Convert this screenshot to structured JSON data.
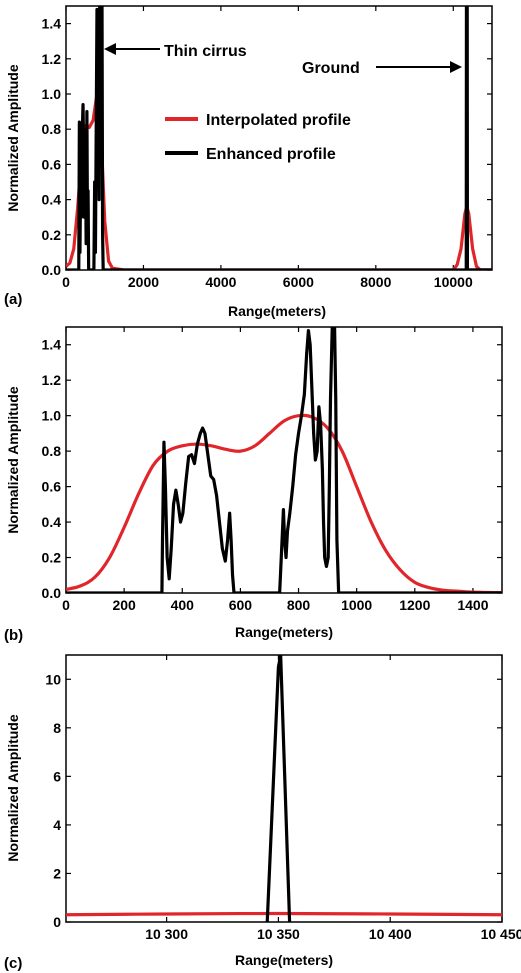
{
  "chart_data": [
    {
      "panel_label": "(a)",
      "type": "line",
      "xlabel": "Range(meters)",
      "ylabel": "Normalized Amplitude",
      "xlim": [
        0,
        11000
      ],
      "ylim": [
        0,
        1.5
      ],
      "xticks": [
        0,
        2000,
        4000,
        6000,
        8000,
        10000
      ],
      "xtick_labels": [
        "0",
        "2000",
        "4000",
        "6000",
        "8000",
        "10000"
      ],
      "yticks": [
        0,
        0.2,
        0.4,
        0.6,
        0.8,
        1.0,
        1.2,
        1.4
      ],
      "ytick_labels": [
        "0.0",
        "0.2",
        "0.4",
        "0.6",
        "0.8",
        "1.0",
        "1.2",
        "1.4"
      ],
      "legend": {
        "placement": "center-left",
        "entries": [
          {
            "label": "Interpolated profile",
            "color": "#e0262b"
          },
          {
            "label": "Enhanced profile",
            "color": "#000000"
          }
        ]
      },
      "annotations": [
        {
          "text": "Thin cirrus",
          "x": 900,
          "y": 1.32
        },
        {
          "text": "Ground",
          "x": 10350,
          "y": 1.23
        }
      ],
      "series": [
        {
          "color": "#e0262b",
          "x": [
            0,
            100,
            200,
            300,
            400,
            500,
            600,
            700,
            800,
            900,
            1000,
            1100,
            1200,
            1500,
            3000,
            6000,
            9000,
            9800,
            10000,
            10100,
            10200,
            10250,
            10300,
            10350,
            10400,
            10450,
            10500,
            10600,
            10700,
            11000
          ],
          "y": [
            0.02,
            0.04,
            0.12,
            0.35,
            0.65,
            0.82,
            0.81,
            0.85,
            1.0,
            0.8,
            0.28,
            0.05,
            0.01,
            0.0,
            0.0,
            0.0,
            0.0,
            0.0,
            0.0,
            0.03,
            0.12,
            0.22,
            0.32,
            0.36,
            0.32,
            0.22,
            0.12,
            0.02,
            0.0,
            0.0
          ]
        },
        {
          "color": "#000000",
          "x": [
            0,
            330,
            345,
            360,
            380,
            395,
            420,
            440,
            460,
            475,
            500,
            520,
            540,
            555,
            570,
            585,
            720,
            740,
            760,
            780,
            800,
            820,
            840,
            855,
            870,
            885,
            900,
            915,
            930,
            945,
            960,
            11000
          ],
          "y": [
            0,
            0,
            0.84,
            0.1,
            0.55,
            0.3,
            0.78,
            0.94,
            0.6,
            0.3,
            0.8,
            0.15,
            0.9,
            0.2,
            0.45,
            0,
            0,
            0.5,
            0.1,
            0.8,
            1.48,
            0.8,
            1.05,
            0.4,
            1.5,
            0.6,
            1.5,
            1.1,
            1.5,
            0.2,
            0,
            0
          ]
        },
        {
          "color": "#000000",
          "x": [
            10300,
            10335,
            10340,
            10345,
            10350,
            10355,
            10360,
            10365,
            11000
          ],
          "y": [
            0,
            0,
            1.5,
            1.5,
            1.5,
            1.5,
            1.5,
            0,
            0
          ]
        }
      ]
    },
    {
      "panel_label": "(b)",
      "type": "line",
      "xlabel": "Range(meters)",
      "ylabel": "Normalized Amplitude",
      "xlim": [
        0,
        1500
      ],
      "ylim": [
        0,
        1.5
      ],
      "xticks": [
        0,
        200,
        400,
        600,
        800,
        1000,
        1200,
        1400
      ],
      "xtick_labels": [
        "0",
        "200",
        "400",
        "600",
        "800",
        "1000",
        "1200",
        "1400"
      ],
      "yticks": [
        0,
        0.2,
        0.4,
        0.6,
        0.8,
        1.0,
        1.2,
        1.4
      ],
      "ytick_labels": [
        "0.0",
        "0.2",
        "0.4",
        "0.6",
        "0.8",
        "1.0",
        "1.2",
        "1.4"
      ],
      "series": [
        {
          "color": "#e0262b",
          "x": [
            0,
            50,
            100,
            150,
            200,
            250,
            300,
            350,
            400,
            450,
            500,
            550,
            600,
            650,
            700,
            750,
            800,
            850,
            900,
            950,
            1000,
            1050,
            1100,
            1150,
            1200,
            1250,
            1300,
            1350,
            1400,
            1450,
            1500
          ],
          "y": [
            0.02,
            0.04,
            0.09,
            0.2,
            0.37,
            0.56,
            0.72,
            0.8,
            0.83,
            0.84,
            0.83,
            0.81,
            0.8,
            0.83,
            0.9,
            0.97,
            1.0,
            0.99,
            0.93,
            0.8,
            0.6,
            0.4,
            0.24,
            0.13,
            0.06,
            0.03,
            0.015,
            0.01,
            0.005,
            0.003,
            0.002
          ],
          "smooth": true
        },
        {
          "color": "#000000",
          "x": [
            0,
            330,
            332,
            337,
            342,
            348,
            355,
            362,
            370,
            378,
            386,
            394,
            402,
            412,
            422,
            432,
            442,
            452,
            462,
            470,
            478,
            488,
            498,
            508,
            518,
            528,
            538,
            548,
            556,
            563,
            568,
            573,
            578,
            585,
            735,
            742,
            748,
            752,
            757,
            762,
            770,
            780,
            790,
            800,
            810,
            820,
            828,
            834,
            840,
            846,
            852,
            858,
            864,
            870,
            876,
            882,
            886,
            890,
            896,
            902,
            906,
            910,
            916,
            920,
            924,
            928,
            932,
            938,
            1500
          ],
          "y": [
            0,
            0,
            0.3,
            0.85,
            0.6,
            0.2,
            0.08,
            0.25,
            0.5,
            0.58,
            0.5,
            0.4,
            0.45,
            0.62,
            0.77,
            0.78,
            0.73,
            0.84,
            0.9,
            0.93,
            0.9,
            0.78,
            0.66,
            0.64,
            0.55,
            0.4,
            0.25,
            0.18,
            0.3,
            0.45,
            0.3,
            0.1,
            0.0,
            0.0,
            0.0,
            0.25,
            0.47,
            0.3,
            0.2,
            0.35,
            0.45,
            0.6,
            0.78,
            0.9,
            1.0,
            1.12,
            1.35,
            1.48,
            1.4,
            1.15,
            0.9,
            0.75,
            0.8,
            1.05,
            0.95,
            0.7,
            0.4,
            0.2,
            0.15,
            0.2,
            0.6,
            1.1,
            1.5,
            1.5,
            1.5,
            1.1,
            0.3,
            0.0,
            0.0
          ]
        }
      ]
    },
    {
      "panel_label": "(c)",
      "type": "line",
      "xlabel": "Range(meters)",
      "ylabel": "Normalized Amplitude",
      "xlim": [
        10255,
        10450
      ],
      "ylim": [
        0,
        11
      ],
      "xticks": [
        10300,
        10350,
        10400,
        10450
      ],
      "xtick_labels": [
        "10 300",
        "10 350",
        "10 400",
        "10 450"
      ],
      "yticks": [
        0,
        2,
        4,
        6,
        8,
        10
      ],
      "ytick_labels": [
        "0",
        "2",
        "4",
        "6",
        "8",
        "10"
      ],
      "series": [
        {
          "color": "#e0262b",
          "x": [
            10255,
            10300,
            10350,
            10400,
            10450
          ],
          "y": [
            0.3,
            0.33,
            0.35,
            0.33,
            0.3
          ],
          "smooth": true
        },
        {
          "color": "#000000",
          "x": [
            10345,
            10350,
            10351,
            10355
          ],
          "y": [
            0,
            10.5,
            11,
            0
          ]
        }
      ]
    }
  ]
}
